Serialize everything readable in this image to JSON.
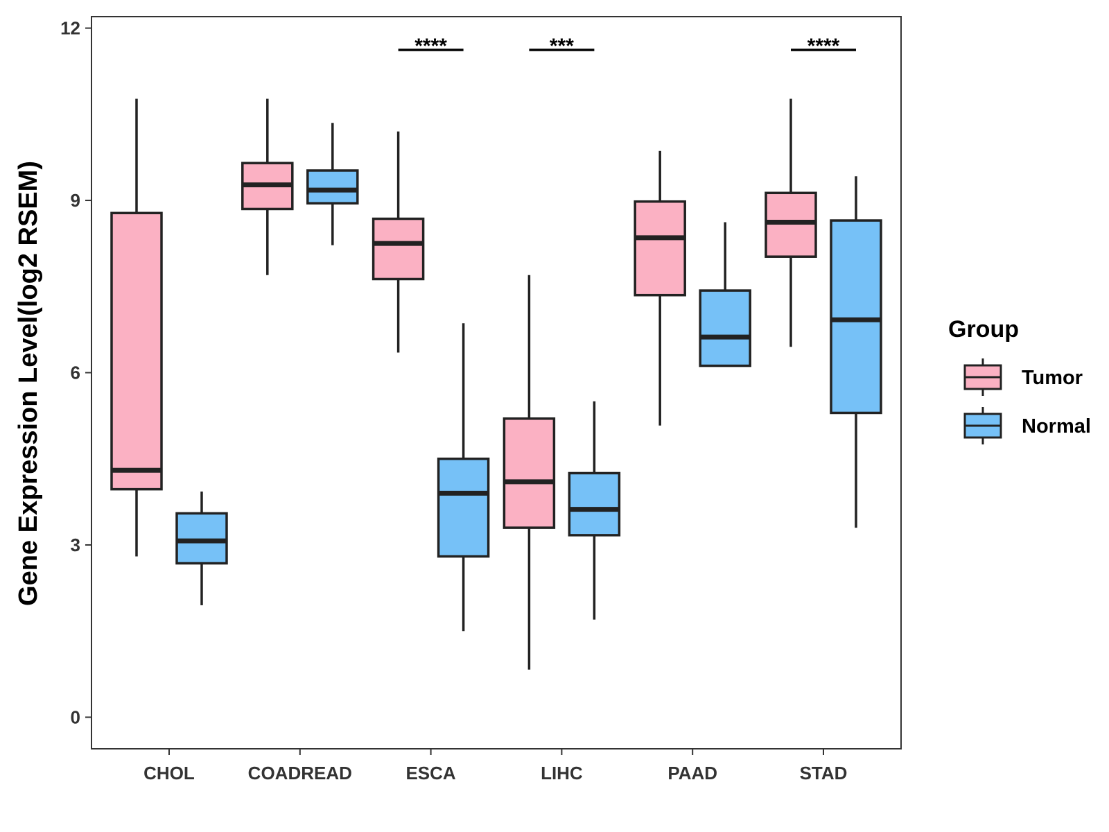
{
  "chart_data": {
    "type": "boxplot",
    "ylabel": "Gene Expression Level(log2 RSEM)",
    "xlabel": "",
    "ylim": [
      -0.55,
      12.2
    ],
    "yticks": [
      0,
      3,
      6,
      9,
      12
    ],
    "categories": [
      "CHOL",
      "COADREAD",
      "ESCA",
      "LIHC",
      "PAAD",
      "STAD"
    ],
    "legend": {
      "title": "Group",
      "placement": "right"
    },
    "series": [
      {
        "name": "Tumor",
        "color": "#FBB1C3",
        "boxes": [
          {
            "whisker_low": 2.8,
            "q1": 3.97,
            "median": 4.3,
            "q3": 8.78,
            "whisker_high": 10.77
          },
          {
            "whisker_low": 7.7,
            "q1": 8.85,
            "median": 9.27,
            "q3": 9.65,
            "whisker_high": 10.77
          },
          {
            "whisker_low": 6.35,
            "q1": 7.63,
            "median": 8.25,
            "q3": 8.68,
            "whisker_high": 10.2
          },
          {
            "whisker_low": 0.83,
            "q1": 3.3,
            "median": 4.1,
            "q3": 5.2,
            "whisker_high": 7.7
          },
          {
            "whisker_low": 5.08,
            "q1": 7.35,
            "median": 8.35,
            "q3": 8.98,
            "whisker_high": 9.86
          },
          {
            "whisker_low": 6.45,
            "q1": 8.02,
            "median": 8.62,
            "q3": 9.13,
            "whisker_high": 10.77
          }
        ]
      },
      {
        "name": "Normal",
        "color": "#76C1F7",
        "boxes": [
          {
            "whisker_low": 1.95,
            "q1": 2.68,
            "median": 3.07,
            "q3": 3.55,
            "whisker_high": 3.93
          },
          {
            "whisker_low": 8.22,
            "q1": 8.95,
            "median": 9.18,
            "q3": 9.52,
            "whisker_high": 10.35
          },
          {
            "whisker_low": 1.5,
            "q1": 2.8,
            "median": 3.9,
            "q3": 4.5,
            "whisker_high": 6.86
          },
          {
            "whisker_low": 1.7,
            "q1": 3.17,
            "median": 3.62,
            "q3": 4.25,
            "whisker_high": 5.5
          },
          {
            "whisker_low": 6.12,
            "q1": 6.12,
            "median": 6.62,
            "q3": 7.43,
            "whisker_high": 8.62
          },
          {
            "whisker_low": 3.3,
            "q1": 5.3,
            "median": 6.92,
            "q3": 8.65,
            "whisker_high": 9.42
          }
        ]
      }
    ],
    "annotations": [
      {
        "category": "ESCA",
        "label": "****",
        "y": 11.62
      },
      {
        "category": "LIHC",
        "label": "***",
        "y": 11.62
      },
      {
        "category": "STAD",
        "label": "****",
        "y": 11.62
      }
    ]
  }
}
